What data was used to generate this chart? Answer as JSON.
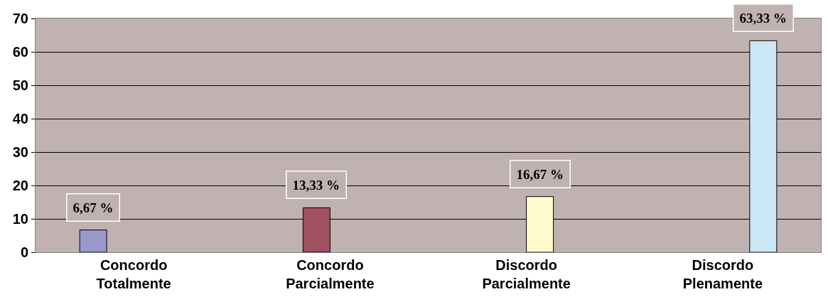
{
  "chart_data": {
    "type": "bar",
    "categories": [
      "Concordo\nTotalmente",
      "Concordo\nParcialmente",
      "Discordo\nParcialmente",
      "Discordo\nPlenamente"
    ],
    "series": [
      {
        "color": "#9999cc",
        "values": [
          6.67,
          null,
          null,
          null
        ],
        "value_labels": [
          "6,67 %",
          null,
          null,
          null
        ]
      },
      {
        "color": "#a0505e",
        "values": [
          null,
          13.33,
          null,
          null
        ],
        "value_labels": [
          null,
          "13,33 %",
          null,
          null
        ]
      },
      {
        "color": "#fffacc",
        "values": [
          null,
          null,
          16.67,
          null
        ],
        "value_labels": [
          null,
          null,
          "16,67 %",
          null
        ]
      },
      {
        "color": "#cce8f6",
        "values": [
          null,
          null,
          null,
          63.33
        ],
        "value_labels": [
          null,
          null,
          null,
          "63,33 %"
        ]
      }
    ],
    "ylim": [
      0,
      70
    ],
    "yticks": [
      0,
      10,
      20,
      30,
      40,
      50,
      60,
      70
    ],
    "grid": "y"
  }
}
